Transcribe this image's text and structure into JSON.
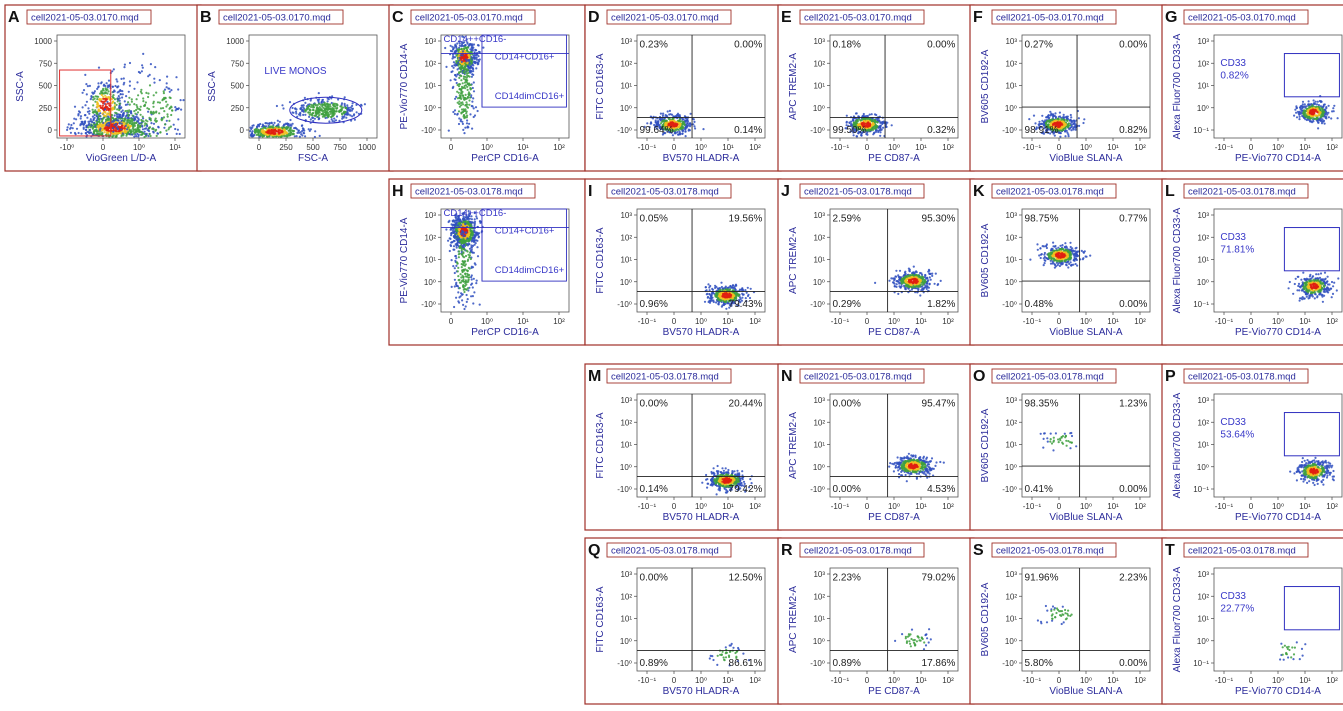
{
  "figure": {
    "files": {
      "f0170": "cell2021-05-03.0170.mqd",
      "f0178": "cell2021-05-03.0178.mqd"
    },
    "axis_labels": {
      "viogreen": "VioGreen L/D-A",
      "ssc": "SSC-A",
      "fsc": "FSC-A",
      "cd14": "PE-Vio770 CD14-A",
      "cd16": "PerCP CD16-A",
      "cd163": "FITC CD163-A",
      "hladr": "BV570 HLADR-A",
      "trem2": "APC TREM2-A",
      "cd87": "PE CD87-A",
      "cd192": "BV605 CD192-A",
      "slan": "VioBlue SLAN-A",
      "cd33": "Alexa Fluor700 CD33-A",
      "cd14x": "PE-Vio770 CD14-A"
    },
    "gate_labels": {
      "live_monos": "LIVE MONOS",
      "cd14cd16neg": "CD14++CD16-",
      "cd14cd16pos": "CD14+CD16+",
      "cd14dim": "CD14dimCD16+",
      "cd33": "CD33"
    },
    "colors": {
      "frame": "#a03028",
      "title_text": "#2a2a9a",
      "axis_label": "#2a2a9a",
      "gate_text": "#3838c8",
      "gate_box": "#3030c0",
      "quad_line": "#202020",
      "density_high": "#e02010",
      "density_mid": "#f0c020",
      "density_low": "#40a040",
      "density_sparse": "#3050c0"
    }
  },
  "chart_data": [
    {
      "panel": "A",
      "type": "scatter",
      "title": "cell2021-05-03.0170.mqd",
      "xlabel": "VioGreen L/D-A",
      "ylabel": "SSC-A",
      "x_ticks": [
        "-10⁰",
        "0",
        "10⁰",
        "10¹"
      ],
      "y_ticks": [
        "0",
        "250",
        "500",
        "750",
        "1000"
      ],
      "gate": "red live-cell gate"
    },
    {
      "panel": "B",
      "type": "scatter",
      "title": "cell2021-05-03.0170.mqd",
      "xlabel": "FSC-A",
      "ylabel": "SSC-A",
      "x_ticks": [
        "0",
        "250",
        "500",
        "750",
        "1000"
      ],
      "y_ticks": [
        "0",
        "250",
        "500",
        "750",
        "1000"
      ],
      "gate_label": "LIVE MONOS"
    },
    {
      "panel": "C",
      "type": "scatter",
      "title": "cell2021-05-03.0170.mqd",
      "xlabel": "PerCP CD16-A",
      "ylabel": "PE-Vio770 CD14-A",
      "gates": [
        "CD14++CD16-",
        "CD14+CD16+",
        "CD14dimCD16+"
      ]
    },
    {
      "panel": "D",
      "type": "scatter",
      "title": "cell2021-05-03.0170.mqd",
      "xlabel": "BV570 HLADR-A",
      "ylabel": "FITC CD163-A",
      "quadrants": {
        "UL": "0.23%",
        "UR": "0.00%",
        "LL": "99.64%",
        "LR": "0.14%"
      }
    },
    {
      "panel": "E",
      "type": "scatter",
      "title": "cell2021-05-03.0170.mqd",
      "xlabel": "PE CD87-A",
      "ylabel": "APC TREM2-A",
      "quadrants": {
        "UL": "0.18%",
        "UR": "0.00%",
        "LL": "99.50%",
        "LR": "0.32%"
      }
    },
    {
      "panel": "F",
      "type": "scatter",
      "title": "cell2021-05-03.0170.mqd",
      "xlabel": "VioBlue SLAN-A",
      "ylabel": "BV605 CD192-A",
      "quadrants": {
        "UL": "0.27%",
        "UR": "0.00%",
        "LL": "98.91%",
        "LR": "0.82%"
      }
    },
    {
      "panel": "G",
      "type": "scatter",
      "title": "cell2021-05-03.0170.mqd",
      "xlabel": "PE-Vio770 CD14-A",
      "ylabel": "Alexa Fluor700 CD33-A",
      "gate": {
        "label": "CD33",
        "value": "0.82%"
      }
    },
    {
      "panel": "H",
      "type": "scatter",
      "title": "cell2021-05-03.0178.mqd",
      "xlabel": "PerCP CD16-A",
      "ylabel": "PE-Vio770 CD14-A",
      "gates": [
        "CD14++CD16-",
        "CD14+CD16+",
        "CD14dimCD16+"
      ]
    },
    {
      "panel": "I",
      "type": "scatter",
      "title": "cell2021-05-03.0178.mqd",
      "xlabel": "BV570 HLADR-A",
      "ylabel": "FITC CD163-A",
      "quadrants": {
        "UL": "0.05%",
        "UR": "19.56%",
        "LL": "0.96%",
        "LR": "79.43%"
      }
    },
    {
      "panel": "J",
      "type": "scatter",
      "title": "cell2021-05-03.0178.mqd",
      "xlabel": "PE CD87-A",
      "ylabel": "APC TREM2-A",
      "quadrants": {
        "UL": "2.59%",
        "UR": "95.30%",
        "LL": "0.29%",
        "LR": "1.82%"
      }
    },
    {
      "panel": "K",
      "type": "scatter",
      "title": "cell2021-05-03.0178.mqd",
      "xlabel": "VioBlue SLAN-A",
      "ylabel": "BV605 CD192-A",
      "quadrants": {
        "UL": "98.75%",
        "UR": "0.77%",
        "LL": "0.48%",
        "LR": "0.00%"
      }
    },
    {
      "panel": "L",
      "type": "scatter",
      "title": "cell2021-05-03.0178.mqd",
      "xlabel": "PE-Vio770 CD14-A",
      "ylabel": "Alexa Fluor700 CD33-A",
      "gate": {
        "label": "CD33",
        "value": "71.81%"
      }
    },
    {
      "panel": "M",
      "type": "scatter",
      "title": "cell2021-05-03.0178.mqd",
      "xlabel": "BV570 HLADR-A",
      "ylabel": "FITC CD163-A",
      "quadrants": {
        "UL": "0.00%",
        "UR": "20.44%",
        "LL": "0.14%",
        "LR": "79.42%"
      }
    },
    {
      "panel": "N",
      "type": "scatter",
      "title": "cell2021-05-03.0178.mqd",
      "xlabel": "PE CD87-A",
      "ylabel": "APC TREM2-A",
      "quadrants": {
        "UL": "0.00%",
        "UR": "95.47%",
        "LL": "0.00%",
        "LR": "4.53%"
      }
    },
    {
      "panel": "O",
      "type": "scatter",
      "title": "cell2021-05-03.0178.mqd",
      "xlabel": "VioBlue SLAN-A",
      "ylabel": "BV605 CD192-A",
      "quadrants": {
        "UL": "98.35%",
        "UR": "1.23%",
        "LL": "0.41%",
        "LR": "0.00%"
      }
    },
    {
      "panel": "P",
      "type": "scatter",
      "title": "cell2021-05-03.0178.mqd",
      "xlabel": "PE-Vio770 CD14-A",
      "ylabel": "Alexa Fluor700 CD33-A",
      "gate": {
        "label": "CD33",
        "value": "53.64%"
      }
    },
    {
      "panel": "Q",
      "type": "scatter",
      "title": "cell2021-05-03.0178.mqd",
      "xlabel": "BV570 HLADR-A",
      "ylabel": "FITC CD163-A",
      "quadrants": {
        "UL": "0.00%",
        "UR": "12.50%",
        "LL": "0.89%",
        "LR": "86.61%"
      }
    },
    {
      "panel": "R",
      "type": "scatter",
      "title": "cell2021-05-03.0178.mqd",
      "xlabel": "PE CD87-A",
      "ylabel": "APC TREM2-A",
      "quadrants": {
        "UL": "2.23%",
        "UR": "79.02%",
        "LL": "0.89%",
        "LR": "17.86%"
      }
    },
    {
      "panel": "S",
      "type": "scatter",
      "title": "cell2021-05-03.0178.mqd",
      "xlabel": "VioBlue SLAN-A",
      "ylabel": "BV605 CD192-A",
      "quadrants": {
        "UL": "91.96%",
        "UR": "2.23%",
        "LL": "5.80%",
        "LR": "0.00%"
      }
    },
    {
      "panel": "T",
      "type": "scatter",
      "title": "cell2021-05-03.0178.mqd",
      "xlabel": "PE-Vio770 CD14-A",
      "ylabel": "Alexa Fluor700 CD33-A",
      "gate": {
        "label": "CD33",
        "value": "22.77%"
      }
    }
  ]
}
